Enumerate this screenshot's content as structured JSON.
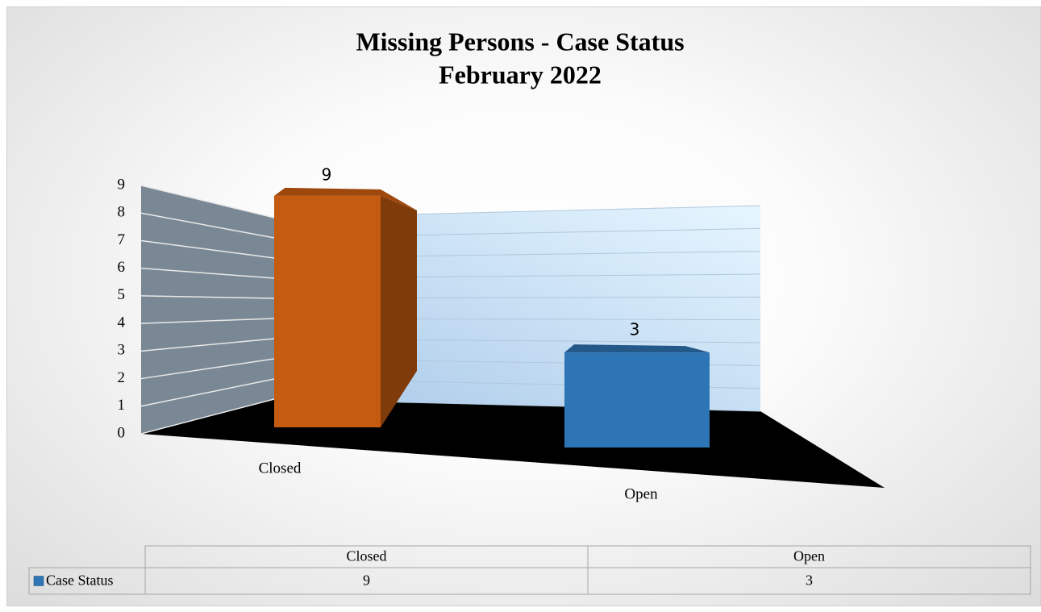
{
  "chart_data": {
    "type": "bar3d",
    "title": "Missing Persons - Case Status",
    "subtitle": "February 2022",
    "categories": [
      "Closed",
      "Open"
    ],
    "series": [
      {
        "name": "Case Status",
        "color": "#2e75b6",
        "values": [
          9,
          3
        ]
      }
    ],
    "point_colors": [
      "#c55a11",
      "#2e75b6"
    ],
    "ylim": [
      0,
      9
    ],
    "yticks": [
      0,
      1,
      2,
      3,
      4,
      5,
      6,
      7,
      8,
      9
    ],
    "grid": true,
    "data_table": true
  }
}
